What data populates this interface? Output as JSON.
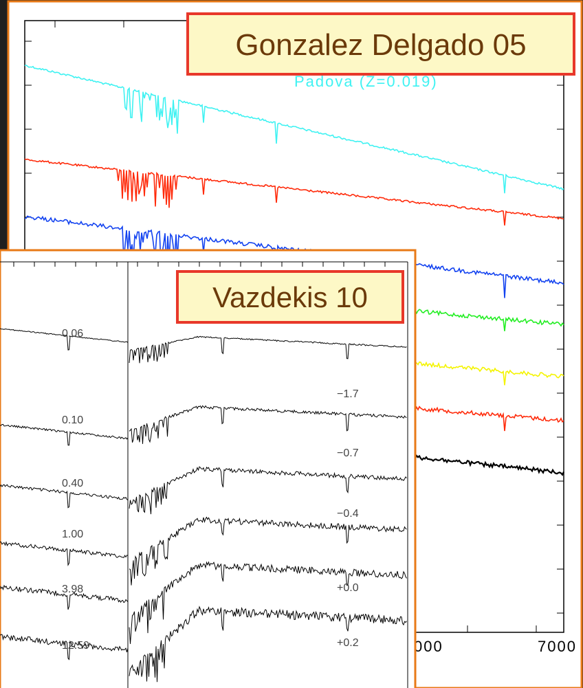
{
  "slide": {
    "background": "#1f1f1f",
    "frame_color": "#e87a17",
    "callout_border": "#e8382a",
    "callout_fill": "#fdf8c6",
    "callout_text_color": "#6b3a0a"
  },
  "chart_data": [
    {
      "type": "line",
      "callout": "Gonzalez Delgado 05",
      "annotation": "Padova (Z=0.019)",
      "x_tick_labels": [
        "000",
        "7000"
      ],
      "series": [
        {
          "color": "#3ff2f2"
        },
        {
          "color": "#ff2a0a"
        },
        {
          "color": "#1242f0"
        },
        {
          "color": "#22ee22"
        },
        {
          "color": "#f4f400"
        },
        {
          "color": "#ff2a0a"
        },
        {
          "color": "#000000"
        }
      ]
    },
    {
      "type": "line",
      "callout": "Vazdekis 10",
      "panels": [
        {
          "labels": [
            "0.06",
            "0.10",
            "0.40",
            "1.00",
            "3.98",
            "12.59"
          ]
        },
        {
          "labels": [
            "-1.7",
            "-0.7",
            "-0.4",
            "+0.0",
            "+0.2"
          ]
        }
      ],
      "series_color": "#000000"
    }
  ]
}
